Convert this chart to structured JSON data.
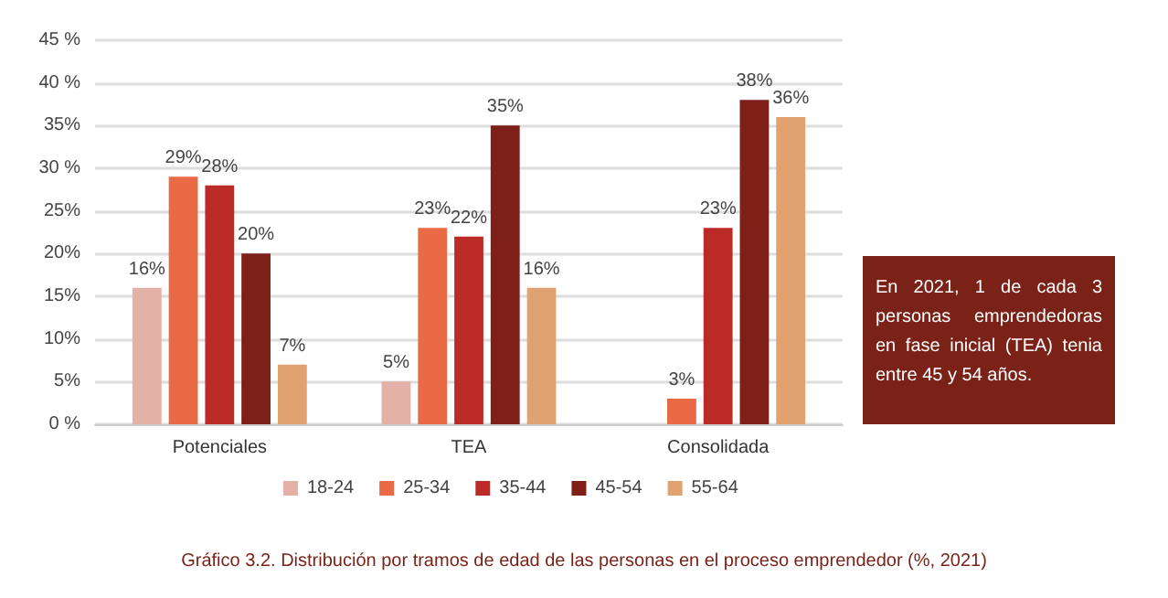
{
  "chart_data": {
    "type": "bar",
    "title": "Gráfico 3.2. Distribución por tramos de edad de las personas en el proceso emprendedor (%, 2021)",
    "categories": [
      "Potenciales",
      "TEA",
      "Consolidada"
    ],
    "series": [
      {
        "name": "18-24",
        "color": "#e3b1a6",
        "values": [
          16,
          5,
          null
        ],
        "value_labels": [
          "16%",
          "5%",
          null
        ]
      },
      {
        "name": "25-34",
        "color": "#e96a45",
        "values": [
          29,
          23,
          3
        ],
        "value_labels": [
          "29%",
          "23%",
          "3%"
        ]
      },
      {
        "name": "35-44",
        "color": "#bc2a28",
        "values": [
          28,
          22,
          23
        ],
        "value_labels": [
          "28%",
          "22%",
          "23%"
        ]
      },
      {
        "name": "45-54",
        "color": "#7e1f18",
        "values": [
          20,
          35,
          38
        ],
        "value_labels": [
          "20%",
          "35%",
          "38%"
        ]
      },
      {
        "name": "55-64",
        "color": "#e0a271",
        "values": [
          7,
          16,
          36
        ],
        "value_labels": [
          "7%",
          "16%",
          "36%"
        ]
      }
    ],
    "ylim": [
      0,
      45
    ],
    "yticks": [
      {
        "value": 0,
        "label": "0 %"
      },
      {
        "value": 5,
        "label": "5%"
      },
      {
        "value": 10,
        "label": "10%"
      },
      {
        "value": 15,
        "label": "15%"
      },
      {
        "value": 20,
        "label": "20%"
      },
      {
        "value": 25,
        "label": "25%"
      },
      {
        "value": 30,
        "label": "30 %"
      },
      {
        "value": 35,
        "label": "35%"
      },
      {
        "value": 40,
        "label": "40 %"
      },
      {
        "value": 45,
        "label": "45 %"
      }
    ],
    "grid": "y",
    "legend": "bottom",
    "annotations": [
      "En 2021, 1 de cada 3 personas emprendedoras en fase inicial (TEA) tenia entre 45 y 54 años."
    ]
  }
}
